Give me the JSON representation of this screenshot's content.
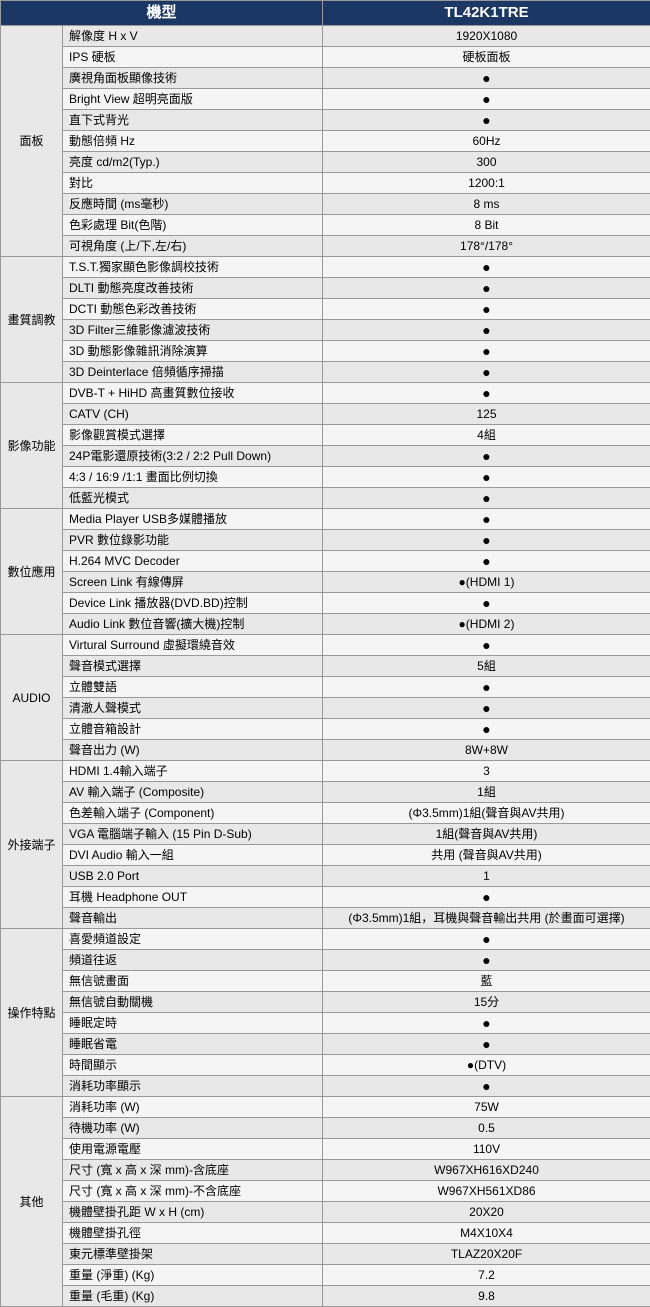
{
  "header": {
    "col1": "機型",
    "col2": "TL42K1TRE"
  },
  "dot": "●",
  "colors": {
    "header_bg": "#1b3763",
    "header_fg": "#ffffff",
    "row_bg": "#e8e8e8",
    "row_alt_bg": "#f5f5f5",
    "border": "#999999"
  },
  "sections": [
    {
      "name": "面板",
      "rows": [
        {
          "label": "解像度 H x V",
          "value": "1920X1080"
        },
        {
          "label": "IPS 硬板",
          "value": "硬板面板"
        },
        {
          "label": "廣視角面板顯像技術",
          "value": "●"
        },
        {
          "label": "Bright View 超明亮面版",
          "value": "●"
        },
        {
          "label": "直下式背光",
          "value": "●"
        },
        {
          "label": "動態倍頻 Hz",
          "value": "60Hz"
        },
        {
          "label": "亮度 cd/m2(Typ.)",
          "value": "300"
        },
        {
          "label": "對比",
          "value": "1200:1"
        },
        {
          "label": "反應時間 (ms毫秒)",
          "value": "8 ms"
        },
        {
          "label": "色彩處理 Bit(色階)",
          "value": "8 Bit"
        },
        {
          "label": "可視角度 (上/下,左/右)",
          "value": "178°/178°"
        }
      ]
    },
    {
      "name": "畫質調教",
      "rows": [
        {
          "label": "T.S.T.獨家顯色影像調校技術",
          "value": "●"
        },
        {
          "label": "DLTI 動態亮度改善技術",
          "value": "●"
        },
        {
          "label": "DCTI 動態色彩改善技術",
          "value": "●"
        },
        {
          "label": "3D Filter三維影像濾波技術",
          "value": "●"
        },
        {
          "label": "3D 動態影像雜訊消除演算",
          "value": "●"
        },
        {
          "label": "3D Deinterlace 倍頻循序掃描",
          "value": "●"
        }
      ]
    },
    {
      "name": "影像功能",
      "rows": [
        {
          "label": "DVB-T + HiHD 高畫質數位接收",
          "value": "●"
        },
        {
          "label": "CATV (CH)",
          "value": "125"
        },
        {
          "label": "影像觀賞模式選擇",
          "value": "4組"
        },
        {
          "label": "24P電影還原技術(3:2 / 2:2 Pull Down)",
          "value": "●"
        },
        {
          "label": "4:3 / 16:9 /1:1 畫面比例切換",
          "value": "●"
        },
        {
          "label": "低藍光模式",
          "value": "●"
        }
      ]
    },
    {
      "name": "數位應用",
      "rows": [
        {
          "label": "Media Player USB多媒體播放",
          "value": "●"
        },
        {
          "label": "PVR 數位錄影功能",
          "value": "●"
        },
        {
          "label": "H.264 MVC Decoder",
          "value": "●"
        },
        {
          "label": "Screen Link 有線傳屏",
          "value": "●(HDMI 1)"
        },
        {
          "label": "Device Link 播放器(DVD.BD)控制",
          "value": "●"
        },
        {
          "label": "Audio Link 數位音響(擴大機)控制",
          "value": "●(HDMI 2)"
        }
      ]
    },
    {
      "name": "AUDIO",
      "rows": [
        {
          "label": "Virtural Surround 虛擬環繞音效",
          "value": "●"
        },
        {
          "label": "聲音模式選擇",
          "value": "5組"
        },
        {
          "label": "立體雙語",
          "value": "●"
        },
        {
          "label": "清澈人聲模式",
          "value": "●"
        },
        {
          "label": "立體音箱設計",
          "value": "●"
        },
        {
          "label": "聲音出力 (W)",
          "value": "8W+8W"
        }
      ]
    },
    {
      "name": "外接端子",
      "rows": [
        {
          "label": "HDMI 1.4輸入端子",
          "value": "3"
        },
        {
          "label": "AV 輸入端子 (Composite)",
          "value": "1組"
        },
        {
          "label": "色差輸入端子 (Component)",
          "value": "(Φ3.5mm)1組(聲音與AV共用)"
        },
        {
          "label": "VGA 電腦端子輸入 (15 Pin D-Sub)",
          "value": "1組(聲音與AV共用)"
        },
        {
          "label": "DVI Audio 輸入一組",
          "value": "共用 (聲音與AV共用)"
        },
        {
          "label": "USB 2.0 Port",
          "value": "1"
        },
        {
          "label": "耳機 Headphone OUT",
          "value": "●"
        },
        {
          "label": "聲音輸出",
          "value": "(Φ3.5mm)1組，耳機與聲音輸出共用 (於畫面可選擇)"
        }
      ]
    },
    {
      "name": "操作特點",
      "rows": [
        {
          "label": "喜愛頻道設定",
          "value": "●"
        },
        {
          "label": "頻道往返",
          "value": "●"
        },
        {
          "label": "無信號畫面",
          "value": "藍"
        },
        {
          "label": "無信號自動關機",
          "value": "15分"
        },
        {
          "label": "睡眠定時",
          "value": "●"
        },
        {
          "label": "睡眠省電",
          "value": "●"
        },
        {
          "label": "時間顯示",
          "value": "●(DTV)"
        },
        {
          "label": "消耗功率顯示",
          "value": "●"
        }
      ]
    },
    {
      "name": "其他",
      "rows": [
        {
          "label": "消耗功率 (W)",
          "value": "75W"
        },
        {
          "label": "待機功率 (W)",
          "value": "0.5"
        },
        {
          "label": "使用電源電壓",
          "value": "110V"
        },
        {
          "label": "尺寸 (寬 x 高 x 深 mm)-含底座",
          "value": "W967XH616XD240"
        },
        {
          "label": "尺寸 (寬 x 高 x 深 mm)-不含底座",
          "value": "W967XH561XD86"
        },
        {
          "label": "機體壁掛孔距 W x H (cm)",
          "value": "20X20"
        },
        {
          "label": "機體壁掛孔徑",
          "value": "M4X10X4"
        },
        {
          "label": "東元標準壁掛架",
          "value": "TLAZ20X20F"
        },
        {
          "label": "重量 (淨重) (Kg)",
          "value": "7.2"
        },
        {
          "label": "重量 (毛重) (Kg)",
          "value": "9.8"
        }
      ]
    }
  ]
}
